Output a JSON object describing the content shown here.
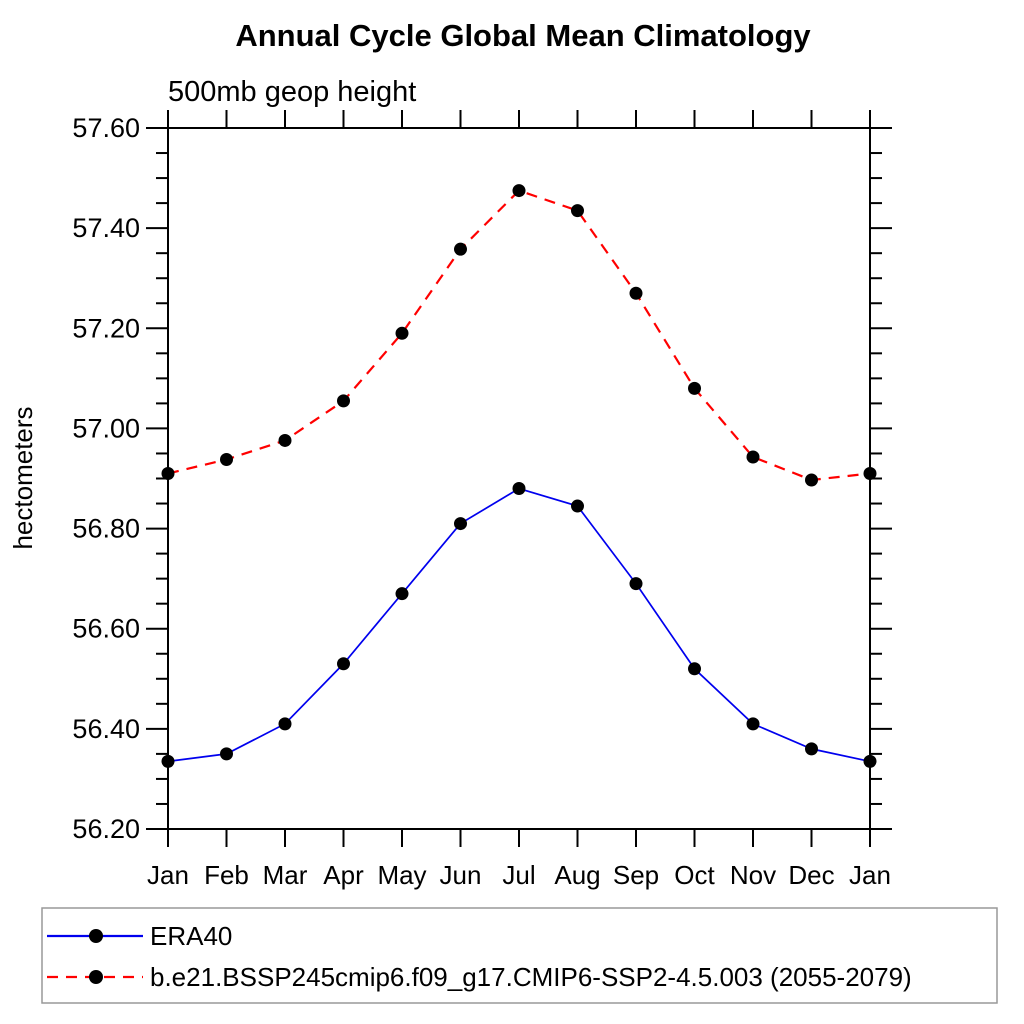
{
  "chart_data": {
    "type": "line",
    "title": "Annual Cycle Global Mean Climatology",
    "subtitle": "500mb geop height",
    "xlabel": "",
    "ylabel": "hectometers",
    "categories": [
      "Jan",
      "Feb",
      "Mar",
      "Apr",
      "May",
      "Jun",
      "Jul",
      "Aug",
      "Sep",
      "Oct",
      "Nov",
      "Dec",
      "Jan"
    ],
    "ylim": [
      56.2,
      57.6
    ],
    "ytick_interval": 0.2,
    "yminor_interval": 0.05,
    "ytick_labels": [
      "56.20",
      "56.40",
      "56.60",
      "56.80",
      "57.00",
      "57.20",
      "57.40",
      "57.60"
    ],
    "grid": false,
    "legend_position": "bottom",
    "frame_color": "#000000",
    "series": [
      {
        "name": "ERA40",
        "color": "#0000ee",
        "line_style": "solid",
        "dash": "",
        "line_width": 1.7,
        "marker": "circle",
        "marker_color": "#000000",
        "values": [
          56.335,
          56.35,
          56.41,
          56.53,
          56.67,
          56.81,
          56.88,
          56.845,
          56.69,
          56.52,
          56.41,
          56.36,
          56.335
        ]
      },
      {
        "name": "b.e21.BSSP245cmip6.f09_g17.CMIP6-SSP2-4.5.003 (2055-2079)",
        "color": "#ff0000",
        "line_style": "dashed",
        "dash": "11,8",
        "line_width": 2.2,
        "marker": "circle",
        "marker_color": "#000000",
        "values": [
          56.91,
          56.938,
          56.976,
          57.055,
          57.19,
          57.358,
          57.475,
          57.435,
          57.27,
          57.08,
          56.943,
          56.897,
          56.91
        ]
      }
    ]
  }
}
